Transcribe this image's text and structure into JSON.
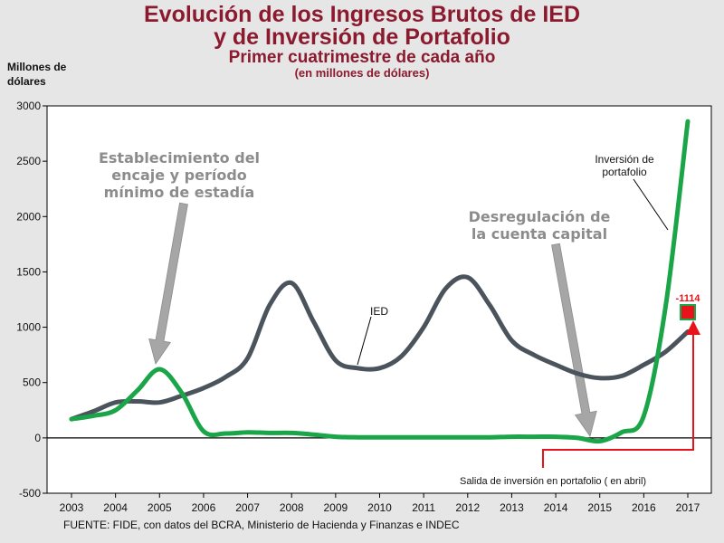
{
  "title": {
    "line1": "Evolución de los Ingresos Brutos de IED",
    "line2": "y de Inversión de Portafolio",
    "line3": "Primer cuatrimestre de cada año",
    "line4": "(en millones de dólares)"
  },
  "y_unit": {
    "line1": "Millones de",
    "line2": "dólares"
  },
  "source": "FUENTE: FIDE, con datos del BCRA, Ministerio de Hacienda y Finanzas e INDEC",
  "colors": {
    "title": "#8b1a2e",
    "ied": "#4b545c",
    "portafolio": "#1aa548",
    "arrow": "#a6a6a6",
    "marker": "#e8121a"
  },
  "chart_data": {
    "type": "line",
    "title": "Evolución de los Ingresos Brutos de IED y de Inversión de Portafolio",
    "subtitle": "Primer cuatrimestre de cada año (en millones de dólares)",
    "xlabel": "",
    "ylabel": "Millones de dólares",
    "ylim": [
      -500,
      3000
    ],
    "yticks": [
      "3000",
      "2500",
      "2000",
      "1500",
      "1000",
      "500",
      "0",
      "-500"
    ],
    "ytick_values": [
      3000,
      2500,
      2000,
      1500,
      1000,
      500,
      0,
      -500
    ],
    "categories": [
      "2003",
      "2004",
      "2005",
      "2006",
      "2007",
      "2008",
      "2009",
      "2010",
      "2011",
      "2012",
      "2013",
      "2014",
      "2015",
      "2016",
      "2017"
    ],
    "x": [
      2003,
      2003.5,
      2004,
      2004.5,
      2005,
      2005.5,
      2006,
      2006.5,
      2007,
      2007.5,
      2008,
      2008.5,
      2009,
      2009.5,
      2010,
      2010.5,
      2011,
      2011.5,
      2012,
      2012.5,
      2013,
      2013.5,
      2014,
      2014.5,
      2015,
      2015.5,
      2016,
      2016.5,
      2017
    ],
    "series": [
      {
        "name": "IED",
        "values": [
          170,
          240,
          320,
          330,
          320,
          380,
          450,
          550,
          720,
          1200,
          1400,
          1050,
          700,
          630,
          630,
          740,
          1000,
          1350,
          1450,
          1200,
          880,
          750,
          660,
          580,
          540,
          560,
          660,
          780,
          960
        ]
      },
      {
        "name": "Inversión de portafolio",
        "values": [
          170,
          200,
          250,
          430,
          620,
          410,
          60,
          40,
          50,
          45,
          45,
          30,
          10,
          5,
          5,
          5,
          5,
          5,
          5,
          5,
          10,
          10,
          10,
          0,
          -30,
          50,
          200,
          1200,
          2860
        ]
      }
    ],
    "annotations": {
      "encaje": [
        "Establecimiento del",
        "encaje y período",
        "mínimo de estadía"
      ],
      "desregulacion": [
        "Desregulación de",
        "la cuenta capital"
      ],
      "ied_label": "IED",
      "portafolio_label": [
        "Inversión de",
        "portafolio"
      ],
      "salida_label": "Salida de inversión en portafolio ( en abril)",
      "salida_value": "-1114"
    }
  }
}
